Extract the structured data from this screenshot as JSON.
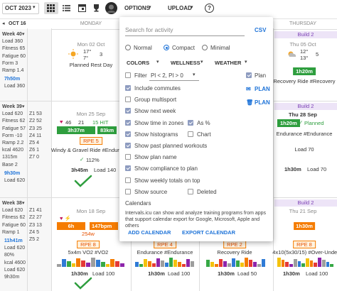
{
  "toolbar": {
    "month": "OCT 2023",
    "options": "OPTIONS",
    "upload": "UPLOAD",
    "help": "?"
  },
  "header": {
    "week_nav": "OCT 16",
    "days": [
      "MONDAY",
      "THURSDAY"
    ]
  },
  "weeks": [
    {
      "title": "Week 40",
      "stats": [
        "Load 360",
        "Fitness 65",
        "Fatigue 60",
        "Form 3",
        "Ramp 1.4"
      ],
      "totals": [
        "7h50m",
        "Load 360"
      ]
    },
    {
      "title": "Week 39",
      "stats": [
        "Load 620",
        "Fitness 62",
        "Fatigue 57",
        "Form -10",
        "Ramp 2.2",
        "kcal 4620",
        "1315m",
        "Base 2"
      ],
      "zones": [
        "Z1 53",
        "Z2 52",
        "Z3 25",
        "Z4 11",
        "Z5 4",
        "Z6 1",
        "Z7 0"
      ],
      "totals": [
        "9h30m",
        "Load 620"
      ]
    },
    {
      "title": "Week 38",
      "stats": [
        "Load 620",
        "Fitness 62",
        "Fatigue 60",
        "Ramp 1"
      ],
      "zones": [
        "Z1 41",
        "Z2 27",
        "Z3 13",
        "Z4 5",
        "Z5 2"
      ],
      "totals": [
        "11h41m",
        "Load 620",
        "80%",
        "kcal 4600",
        "Load 620",
        "9h30m"
      ]
    }
  ],
  "cells": {
    "r1_mon": {
      "date": "Mon 02 Oct",
      "temp_high": "17°",
      "temp_low": "7°",
      "wind": "3",
      "note": "Planned Rest Day"
    },
    "r1_thu": {
      "phase": "Build 2",
      "date": "Thu 05 Oct",
      "temp_high": "12°",
      "temp_low": "13°",
      "wind": "5",
      "duration": "1h20m",
      "name": "Recovery Ride #Recovery"
    },
    "r2_mon": {
      "date": "Mon 25 Sep",
      "hr": "46",
      "hit": "21",
      "tag": "15 HIT",
      "duration": "3h37m",
      "distance": "83km",
      "rpe": "RPE 5",
      "name": "Windy & Gravel Ride #Endurance",
      "compliance": "112%",
      "planned": "3h45m",
      "load": "Load 140"
    },
    "r2_thu": {
      "phase": "Build 2",
      "date": "Thu 28 Sep",
      "duration": "1h20m",
      "status": "Planned",
      "name": "Endurance #Endurance",
      "load": "Load 70",
      "planned": "1h30m",
      "planned_load": "Load 70"
    },
    "r3_mon": {
      "date": "Mon 18 Sep",
      "duration": "6h",
      "hr": "147bpm",
      "power": "254w",
      "rpe": "RPE 8",
      "name": "5x4m VO2 #VO2",
      "planned": "1h30m",
      "load": "Load 100"
    },
    "r3_tue": {
      "rpe": "RPE 4",
      "name": "Endurance #Endurance",
      "planned": "1h30m",
      "load": "Load 100"
    },
    "r3_wed": {
      "rpe": "RPE 2",
      "name": "Recovery Ride",
      "planned": "1h30m",
      "load": "Load 50"
    },
    "r3_thu": {
      "phase": "Build 2",
      "date": "Thu 21 Sep",
      "duration": "1h30m",
      "rpe": "RPE 8",
      "name": "4x10(5x30/15) #Over-Under",
      "planned": "1h30m",
      "load": "Load 100"
    }
  },
  "options_menu": {
    "search_placeholder": "Search for activity",
    "csv": "CSV",
    "views": [
      {
        "label": "Normal",
        "selected": false
      },
      {
        "label": "Compact",
        "selected": true
      },
      {
        "label": "Minimal",
        "selected": false
      }
    ],
    "menus": [
      "COLORS",
      "WELLNESS",
      "WEATHER"
    ],
    "filter": {
      "label": "Filter",
      "checked": false,
      "value": "Pl < 2, Pl > 0"
    },
    "plan_toggle": {
      "label": "Plan",
      "checked": true
    },
    "plan_buttons": [
      "PLAN",
      "PLAN"
    ],
    "checkboxes": [
      {
        "label": "Include commutes",
        "checked": true
      },
      {
        "label": "Group multisport",
        "checked": false
      },
      {
        "label": "Show next week",
        "checked": true
      },
      {
        "label": "Show time in zones",
        "checked": true,
        "extra": {
          "label": "As %",
          "checked": true
        }
      },
      {
        "label": "Show histograms",
        "checked": true,
        "extra": {
          "label": "Chart",
          "checked": false
        }
      },
      {
        "label": "Show past planned workouts",
        "checked": true
      },
      {
        "label": "Show plan name",
        "checked": false
      },
      {
        "label": "Show compliance to plan",
        "checked": true
      },
      {
        "label": "Show weekly totals on top",
        "checked": false
      },
      {
        "label": "Show source",
        "checked": false,
        "extra": {
          "label": "Deleted",
          "checked": false
        }
      }
    ],
    "calendars_title": "Calendars",
    "calendars_text": "Intervals.icu can show and analyze training programs from apps that support calendar export for Google, Microsoft, Apple and others",
    "buttons": [
      "ADD CALENDAR",
      "EXPORT CALENDAR"
    ]
  }
}
